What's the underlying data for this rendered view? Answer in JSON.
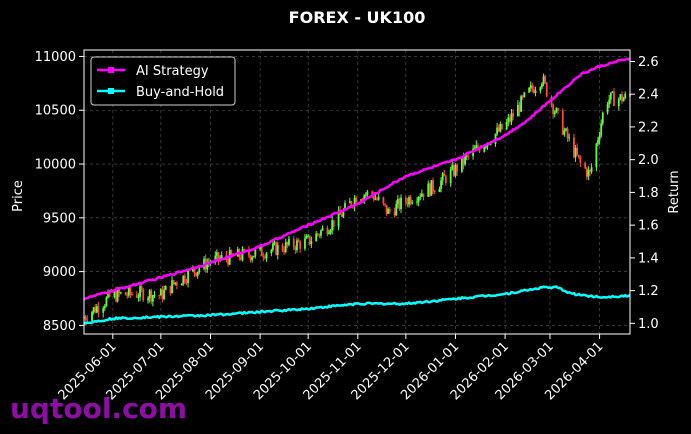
{
  "chart_data": {
    "type": "line",
    "title": "FOREX - UK100",
    "ylabel_left": "Price",
    "ylabel_right": "Return",
    "xlim": [
      "2025-05-14",
      "2026-04-20"
    ],
    "ylim_left": [
      8420,
      11060
    ],
    "ylim_right": [
      0.935,
      2.67
    ],
    "left_ticks": [
      "8500",
      "9000",
      "9500",
      "10000",
      "10500",
      "11000"
    ],
    "right_ticks": [
      "1.0",
      "1.2",
      "1.4",
      "1.6",
      "1.8",
      "2.0",
      "2.2",
      "2.4",
      "2.6"
    ],
    "x_ticks": [
      {
        "date": "2025-06-01",
        "label": "2025-06-01"
      },
      {
        "date": "2025-07-01",
        "label": "2025-07-01"
      },
      {
        "date": "2025-08-01",
        "label": "2025-08-01"
      },
      {
        "date": "2025-09-01",
        "label": "2025-09-01"
      },
      {
        "date": "2025-10-01",
        "label": "2025-10-01"
      },
      {
        "date": "2025-11-01",
        "label": "2025-11-01"
      },
      {
        "date": "2025-12-01",
        "label": "2025-12-01"
      },
      {
        "date": "2026-01-01",
        "label": "2026-01-01"
      },
      {
        "date": "2026-02-01",
        "label": "2026-02-01"
      },
      {
        "date": "2026-03-01",
        "label": "2026-03-01"
      },
      {
        "date": "2026-04-01",
        "label": "2026-04-01"
      }
    ],
    "grid": true,
    "legend_position": "top-left",
    "series": [
      {
        "name": "AI Strategy",
        "color": "#ff00ff",
        "axis": "right",
        "points": [
          [
            "2025-05-14",
            1.15
          ],
          [
            "2025-06-01",
            1.2
          ],
          [
            "2025-07-01",
            1.28
          ],
          [
            "2025-08-01",
            1.37
          ],
          [
            "2025-09-01",
            1.47
          ],
          [
            "2025-10-01",
            1.6
          ],
          [
            "2025-11-01",
            1.73
          ],
          [
            "2025-12-01",
            1.9
          ],
          [
            "2026-01-01",
            2.0
          ],
          [
            "2026-02-01",
            2.15
          ],
          [
            "2026-02-15",
            2.24
          ],
          [
            "2026-03-01",
            2.36
          ],
          [
            "2026-03-20",
            2.52
          ],
          [
            "2026-04-01",
            2.57
          ],
          [
            "2026-04-20",
            2.62
          ]
        ]
      },
      {
        "name": "Buy-and-Hold",
        "color": "#00ffff",
        "axis": "right",
        "points": [
          [
            "2025-05-14",
            1.0
          ],
          [
            "2025-06-01",
            1.03
          ],
          [
            "2025-07-01",
            1.04
          ],
          [
            "2025-08-01",
            1.05
          ],
          [
            "2025-09-01",
            1.07
          ],
          [
            "2025-10-01",
            1.09
          ],
          [
            "2025-11-01",
            1.12
          ],
          [
            "2025-12-01",
            1.12
          ],
          [
            "2026-01-01",
            1.15
          ],
          [
            "2026-02-01",
            1.18
          ],
          [
            "2026-02-25",
            1.22
          ],
          [
            "2026-03-05",
            1.22
          ],
          [
            "2026-03-15",
            1.18
          ],
          [
            "2026-04-01",
            1.16
          ],
          [
            "2026-04-20",
            1.17
          ]
        ]
      }
    ],
    "candles": {
      "axis": "left",
      "up_color": "#5fff3f",
      "down_color": "#ff4a3c",
      "anchors": [
        [
          "2025-05-14",
          8580
        ],
        [
          "2025-06-01",
          8780
        ],
        [
          "2025-06-20",
          8800
        ],
        [
          "2025-07-01",
          8780
        ],
        [
          "2025-07-10",
          8900
        ],
        [
          "2025-08-01",
          9100
        ],
        [
          "2025-09-01",
          9180
        ],
        [
          "2025-10-01",
          9280
        ],
        [
          "2025-10-20",
          9500
        ],
        [
          "2025-11-01",
          9720
        ],
        [
          "2025-11-10",
          9720
        ],
        [
          "2025-11-20",
          9550
        ],
        [
          "2025-12-05",
          9700
        ],
        [
          "2025-12-20",
          9800
        ],
        [
          "2026-01-01",
          9950
        ],
        [
          "2026-01-15",
          10150
        ],
        [
          "2026-02-01",
          10350
        ],
        [
          "2026-02-15",
          10650
        ],
        [
          "2026-02-24",
          10800
        ],
        [
          "2026-03-01",
          10600
        ],
        [
          "2026-03-10",
          10300
        ],
        [
          "2026-03-20",
          10000
        ],
        [
          "2026-03-26",
          9900
        ],
        [
          "2026-04-05",
          10600
        ],
        [
          "2026-04-20",
          10620
        ]
      ]
    }
  },
  "legend": {
    "items": [
      "AI Strategy",
      "Buy-and-Hold"
    ]
  },
  "watermark": "uqtool.com"
}
